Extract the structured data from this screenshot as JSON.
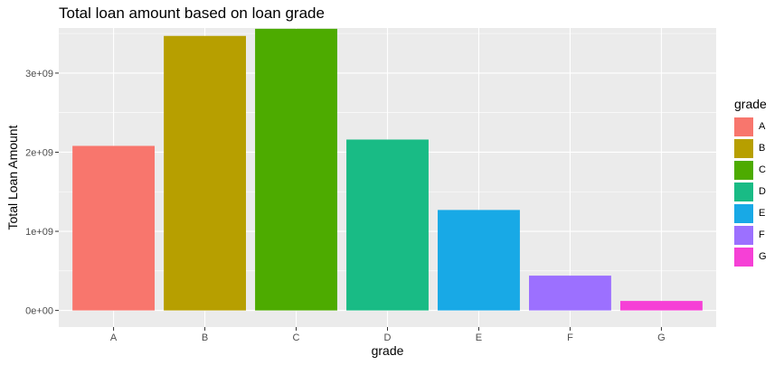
{
  "chart_data": {
    "type": "bar",
    "title": "Total loan amount based on loan grade",
    "xlabel": "grade",
    "ylabel": "Total Loan Amount",
    "categories": [
      "A",
      "B",
      "C",
      "D",
      "E",
      "F",
      "G"
    ],
    "values": [
      2080000000,
      3470000000,
      3560000000,
      2160000000,
      1270000000,
      440000000,
      120000000
    ],
    "colors": [
      "#F8766D",
      "#B79F00",
      "#4DAB00",
      "#19BB85",
      "#18A9E6",
      "#9C70FF",
      "#F640D6"
    ],
    "ylim": [
      -210000000,
      3570000000
    ],
    "yticks": [
      0,
      1000000000,
      2000000000,
      3000000000
    ],
    "ytick_labels": [
      "0e+00",
      "1e+09",
      "2e+09",
      "3e+09"
    ],
    "grid": true,
    "legend": {
      "title": "grade",
      "position": "right"
    }
  }
}
